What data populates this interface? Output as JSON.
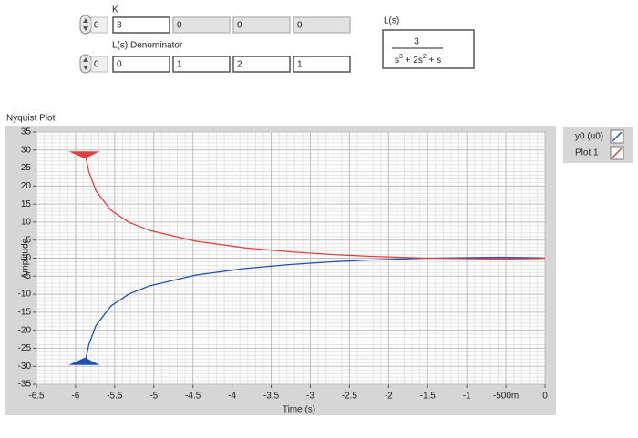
{
  "controls": {
    "k": {
      "label": "K",
      "index": 0,
      "values": [
        3,
        0,
        0,
        0
      ]
    },
    "denominator": {
      "label": "L(s) Denominator",
      "index": 0,
      "values": [
        0,
        1,
        2,
        1
      ]
    },
    "transfer_function": {
      "label": "L(s)",
      "numerator": "3",
      "denominator_parts": [
        "s",
        "3",
        " + 2s",
        "2",
        " + s"
      ]
    }
  },
  "chart_data": {
    "type": "line",
    "title": "Nyquist Plot",
    "x_label": "Time (s)",
    "y_label": "Amplitude",
    "xlim": [
      -6.5,
      0
    ],
    "ylim": [
      -35,
      35
    ],
    "xticks": [
      -6.5,
      -6,
      -5.5,
      -5,
      -4.5,
      -4,
      -3.5,
      -3,
      -2.5,
      -2,
      -1.5,
      -1,
      {
        "value": -0.5,
        "label": "-500m"
      },
      0
    ],
    "yticks": [
      -35,
      -30,
      -25,
      -20,
      -15,
      -10,
      -5,
      0,
      5,
      10,
      15,
      20,
      25,
      30,
      35
    ],
    "grid": true,
    "series": [
      {
        "name": "y0 (u0)",
        "color": "#1f4fb4",
        "x": [
          -5.88,
          -5.83,
          -5.74,
          -5.55,
          -5.32,
          -5.05,
          -4.46,
          -3.84,
          -3.24,
          -2.7,
          -2.23,
          -1.5,
          -0.57,
          -0.06,
          0
        ],
        "values": [
          -29.11,
          -23.95,
          -18.7,
          -13.31,
          -9.97,
          -7.66,
          -4.68,
          -2.88,
          -1.73,
          -0.98,
          -0.5,
          0,
          0.24,
          0.08,
          0
        ]
      },
      {
        "name": "Plot 1",
        "color": "#e04040",
        "x": [
          -5.88,
          -5.83,
          -5.74,
          -5.55,
          -5.32,
          -5.05,
          -4.46,
          -3.84,
          -3.24,
          -2.7,
          -2.23,
          -1.5,
          -0.57,
          -0.06,
          0
        ],
        "values": [
          29.11,
          23.95,
          18.7,
          13.31,
          9.97,
          7.66,
          4.68,
          2.88,
          1.73,
          0.98,
          0.5,
          0,
          -0.24,
          -0.08,
          0
        ]
      }
    ]
  }
}
